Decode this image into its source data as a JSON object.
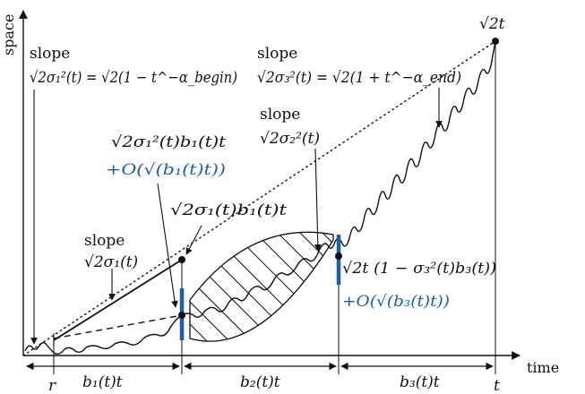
{
  "axes": {
    "x_label": "time",
    "y_label": "space",
    "ticks": [
      "r",
      "t"
    ]
  },
  "labels": {
    "top_right": "√2t",
    "slope_begin_line1": "slope",
    "slope_begin_line2": "√2σ₁²(t) = √2(1 − t^−α_begin)",
    "slope_end_line1": "slope",
    "slope_end_line2": "√2σ₃²(t) = √2(1 + t^−α_end)",
    "slope_mid_line1": "slope",
    "slope_mid_line2": "√2σ₂²(t)",
    "first_point_line1": "√2σ₁²(t)b₁(t)t",
    "first_point_line2": "+O(√(b₁(t)t))",
    "upper_point": "√2σ₁(t)b₁(t)t",
    "slope_sigma1_line1": "slope",
    "slope_sigma1_line2": "√2σ₁(t)",
    "right_point_line1": "√2t (1 − σ₃²(t)b₃(t))",
    "right_point_line2": "+O(√(b₃(t)t))"
  },
  "intervals": [
    {
      "label": "b₁(t)t"
    },
    {
      "label": "b₂(t)t"
    },
    {
      "label": "b₃(t)t"
    }
  ],
  "colors": {
    "ink": "#111111",
    "accent": "#1f5fa8"
  }
}
